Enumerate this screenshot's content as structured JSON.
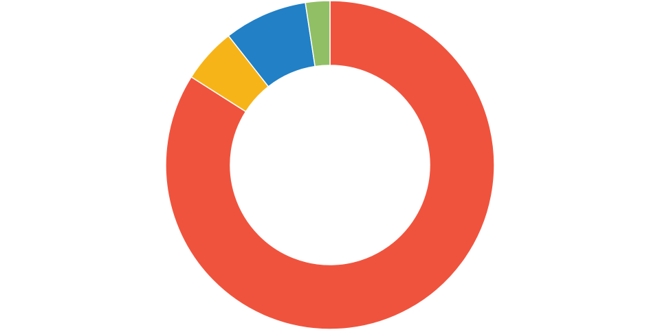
{
  "chart_data": {
    "type": "donut",
    "values": [
      84,
      5.4,
      8.2,
      2.4
    ],
    "colors": [
      "#f0533d",
      "#f7b418",
      "#2180c6",
      "#91bf66"
    ]
  }
}
